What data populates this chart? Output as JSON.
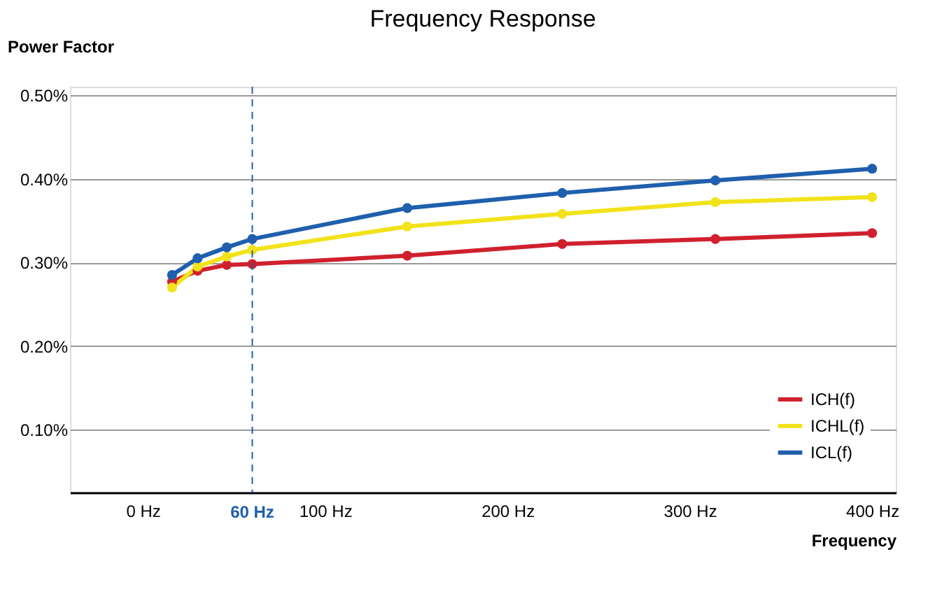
{
  "chart_data": {
    "type": "line",
    "title": "Frequency Response",
    "xlabel": "Frequency",
    "ylabel": "Power Factor",
    "x": [
      16,
      30,
      46,
      60,
      145,
      230,
      314,
      400
    ],
    "series": [
      {
        "name": "ICH(f)",
        "color": "#d0202e",
        "values": [
          0.277,
          0.29,
          0.297,
          0.298,
          0.308,
          0.322,
          0.328,
          0.335
        ]
      },
      {
        "name": "ICHL(f)",
        "color": "#f2e21a",
        "values": [
          0.27,
          0.295,
          0.307,
          0.315,
          0.343,
          0.358,
          0.372,
          0.378
        ]
      },
      {
        "name": "ICL(f)",
        "color": "#1f5fae",
        "values": [
          0.285,
          0.305,
          0.318,
          0.328,
          0.365,
          0.383,
          0.398,
          0.412
        ]
      }
    ],
    "xlim": [
      -40,
      413
    ],
    "ylim": [
      0.025,
      0.51
    ],
    "xticks": [
      {
        "value": 0,
        "label": "0 Hz"
      },
      {
        "value": 100,
        "label": "100 Hz"
      },
      {
        "value": 200,
        "label": "200 Hz"
      },
      {
        "value": 300,
        "label": "300 Hz"
      },
      {
        "value": 400,
        "label": "400 Hz"
      }
    ],
    "yticks": [
      {
        "value": 0.1,
        "label": "0.10%"
      },
      {
        "value": 0.2,
        "label": "0.20%"
      },
      {
        "value": 0.3,
        "label": "0.30%"
      },
      {
        "value": 0.4,
        "label": "0.40%"
      },
      {
        "value": 0.5,
        "label": "0.50%"
      }
    ],
    "ref_lines": [
      {
        "axis": "x",
        "value": 60,
        "label": "60 Hz",
        "color": "#1f5fae",
        "line_style": "dashed"
      }
    ],
    "grid": "y",
    "legend": "bottom right",
    "marker": "circle",
    "line_style": "solid"
  }
}
